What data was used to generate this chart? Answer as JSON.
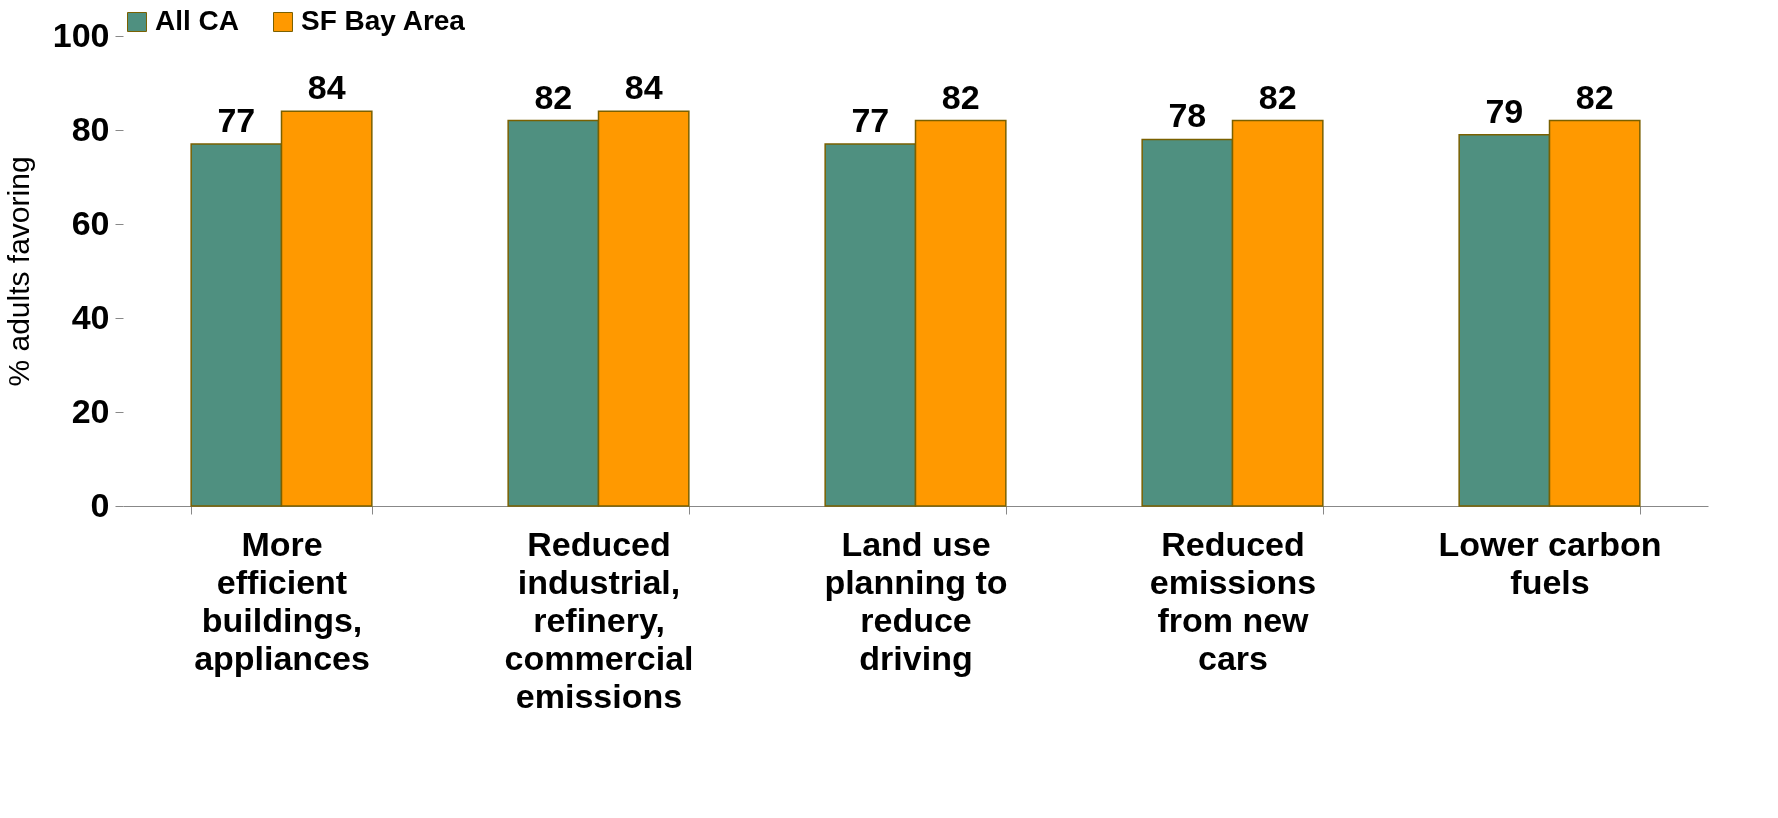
{
  "chart_data": {
    "type": "bar",
    "categories": [
      "More efficient buildings, appliances",
      "Reduced industrial, refinery, commercial emissions",
      "Land use planning to reduce driving",
      "Reduced emissions from new cars",
      "Lower carbon fuels"
    ],
    "series": [
      {
        "name": "All CA",
        "color": "#4f9080",
        "values": [
          77,
          82,
          77,
          78,
          79
        ]
      },
      {
        "name": "SF Bay Area",
        "color": "#ff9900",
        "values": [
          84,
          84,
          82,
          82,
          82
        ]
      }
    ],
    "ylabel": "% adults favoring",
    "ylim": [
      0,
      100
    ],
    "yticks": [
      0,
      20,
      40,
      60,
      80,
      100
    ],
    "data_labels": true,
    "legend": "top",
    "grid": false
  }
}
